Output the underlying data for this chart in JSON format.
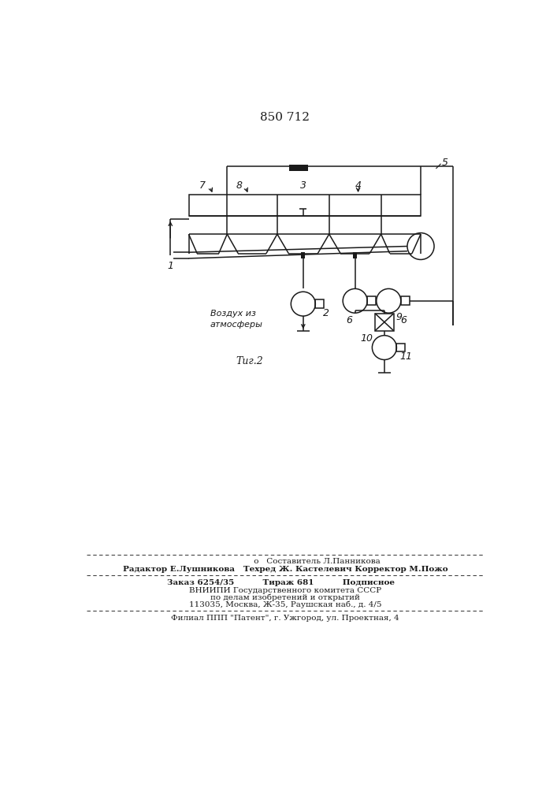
{
  "title": "850 712",
  "fig_label": "Τиг.2",
  "bg_color": "#ffffff",
  "line_color": "#1a1a1a",
  "text_color": "#1a1a1a",
  "footer_line1a": "                         o   Составитель Л.Панникова",
  "footer_line2a": "Радактор Е.Лушникова   Техред Ж. Кастелевич Корректор М.Пожо",
  "footer_line3a": "Заказ 6254/35          Тираж 681          Подписное",
  "footer_line4a": "ВНИИПИ Государственного комитета СССР",
  "footer_line5a": "по делам изобретений и открытий",
  "footer_line6a": "113035, Москва, Ж-35, Раушская наб., д. 4/5",
  "footer_line7a": "Филиал ППП \"Патент\", г. Ужгород, ул. Проектная, 4",
  "vozduh_text": "Воздух из\nатмосферы"
}
